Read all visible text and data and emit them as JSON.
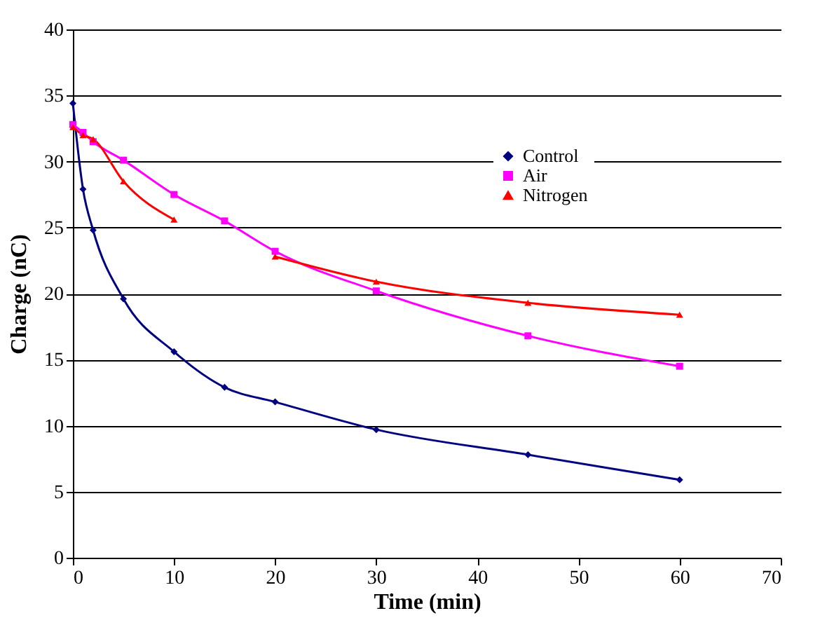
{
  "chart_data": {
    "type": "line",
    "xlabel": "Time (min)",
    "ylabel": "Charge (nC)",
    "x": [
      0,
      1,
      2,
      5,
      10,
      15,
      20,
      30,
      45,
      60
    ],
    "series": [
      {
        "name": "Control",
        "color": "#000080",
        "marker": "diamond",
        "values": [
          34.4,
          27.9,
          24.8,
          19.6,
          15.6,
          12.9,
          11.8,
          9.7,
          7.8,
          5.9
        ]
      },
      {
        "name": "Air",
        "color": "#ff00ff",
        "marker": "square",
        "values": [
          32.8,
          32.2,
          31.5,
          30.1,
          27.5,
          25.5,
          23.2,
          20.2,
          16.8,
          14.5
        ]
      },
      {
        "name": "Nitrogen",
        "color": "#ff0000",
        "marker": "triangle",
        "values": [
          32.6,
          32.0,
          31.7,
          28.5,
          25.6,
          null,
          22.8,
          20.9,
          19.3,
          18.4
        ]
      }
    ],
    "xlim": [
      0,
      70
    ],
    "xticks": [
      0,
      10,
      20,
      30,
      40,
      50,
      60,
      70
    ],
    "ylim": [
      0,
      40
    ],
    "yticks": [
      0,
      5,
      10,
      15,
      20,
      25,
      30,
      35,
      40
    ],
    "grid": "y",
    "legend": "top right"
  }
}
